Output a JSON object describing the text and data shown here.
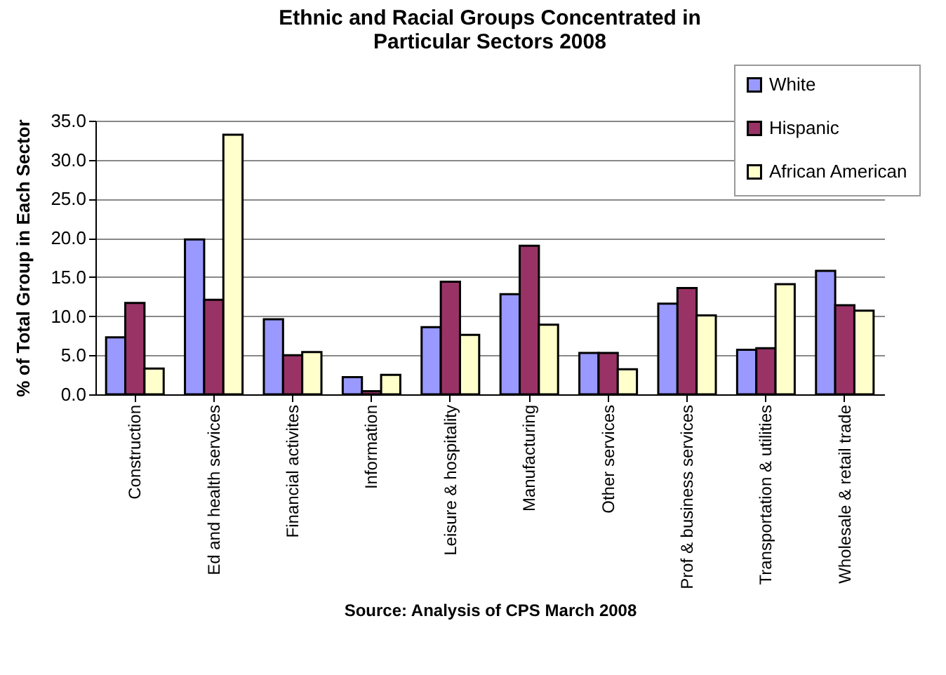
{
  "chart_data": {
    "type": "bar",
    "title": [
      "Ethnic and Racial Groups Concentrated in",
      "Particular Sectors 2008"
    ],
    "ylabel": "% of Total Group in Each Sector",
    "annotations": [
      "Source:  Analysis of CPS March 2008"
    ],
    "categories": [
      "Construction",
      "Ed and health services",
      "Financial activites",
      "Information",
      "Leisure & hospitality",
      "Manufacturing",
      "Other services",
      "Prof & business services",
      "Transportation & utilities",
      "Wholesale & retail trade"
    ],
    "series": [
      {
        "name": "White",
        "color": "#9999ff",
        "values": [
          7.3,
          19.8,
          9.6,
          2.2,
          8.6,
          12.8,
          5.3,
          11.6,
          5.7,
          15.8
        ]
      },
      {
        "name": "Hispanic",
        "color": "#993366",
        "values": [
          11.7,
          12.1,
          5.0,
          0.4,
          14.4,
          19.0,
          5.3,
          13.6,
          5.9,
          11.4
        ]
      },
      {
        "name": "African American",
        "color": "#ffffcc",
        "values": [
          3.3,
          33.2,
          5.4,
          2.5,
          7.6,
          8.9,
          3.2,
          10.1,
          14.1,
          10.7
        ]
      }
    ],
    "ylim": [
      0,
      35
    ],
    "yticks": [
      {
        "value": 0,
        "label": "0.0"
      },
      {
        "value": 5,
        "label": "5.0"
      },
      {
        "value": 10,
        "label": "10.0"
      },
      {
        "value": 15,
        "label": "15.0"
      },
      {
        "value": 20,
        "label": "20.0"
      },
      {
        "value": 25,
        "label": "25.0"
      },
      {
        "value": 30,
        "label": "30.0"
      },
      {
        "value": 35,
        "label": "35.0"
      }
    ],
    "grid": "y",
    "legend": "top right"
  }
}
